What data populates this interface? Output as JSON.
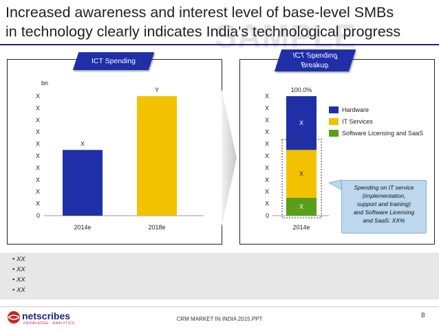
{
  "header": {
    "title_line1": "Increased awareness and interest level of base-level SMBs",
    "title_line2": "in technology clearly indicates India's technological progress",
    "watermark": "SAMPLE"
  },
  "colors": {
    "navy": "#1f2fa8",
    "yellow": "#f2c200",
    "green": "#5a9e1a",
    "callout": "#bcd7ee"
  },
  "chart_data": [
    {
      "type": "bar",
      "title": "ICT Spending",
      "ylabel": "bn",
      "categories": [
        "2014e",
        "2018e"
      ],
      "values": [
        55,
        100
      ],
      "data_labels": [
        "X",
        "Y"
      ],
      "y_ticks": [
        "0",
        "X",
        "X",
        "X",
        "X",
        "X",
        "X",
        "X",
        "X",
        "X",
        "X"
      ],
      "ylim": [
        0,
        100
      ],
      "grid": false
    },
    {
      "type": "bar",
      "title": "ICT Spending Breakup",
      "title_line1": "ICT Spending",
      "title_line2": "Breakup",
      "categories": [
        "2014e"
      ],
      "series": [
        {
          "name": "Software Licensing and SaaS",
          "value": 15,
          "label": "X"
        },
        {
          "name": "IT Services",
          "value": 40,
          "label": "X"
        },
        {
          "name": "Hardware",
          "value": 45,
          "label": "X"
        }
      ],
      "total_label": "100.0%",
      "legend_order": [
        "Hardware",
        "IT Services",
        "Software Licensing and SaaS"
      ],
      "legend": "right",
      "y_ticks": [
        "0",
        "X",
        "X",
        "X",
        "X",
        "X",
        "X",
        "X",
        "X",
        "X",
        "X"
      ],
      "ylim": [
        0,
        100
      ],
      "grid": false
    }
  ],
  "callout": {
    "line1": "Spending on IT service",
    "line2": "(implementation,",
    "line3": "support and training)",
    "line4": "and Software Licensing",
    "line5": "and SaaS: XX%"
  },
  "bullets": [
    "XX",
    "XX",
    "XX",
    "XX"
  ],
  "footer": {
    "logo": "netscribes",
    "logo_tagline": "KNOWLEDGE  ·  ANALYTICS",
    "doc": "CRM MARKET IN INDIA 2015.PPT",
    "page": "8"
  }
}
